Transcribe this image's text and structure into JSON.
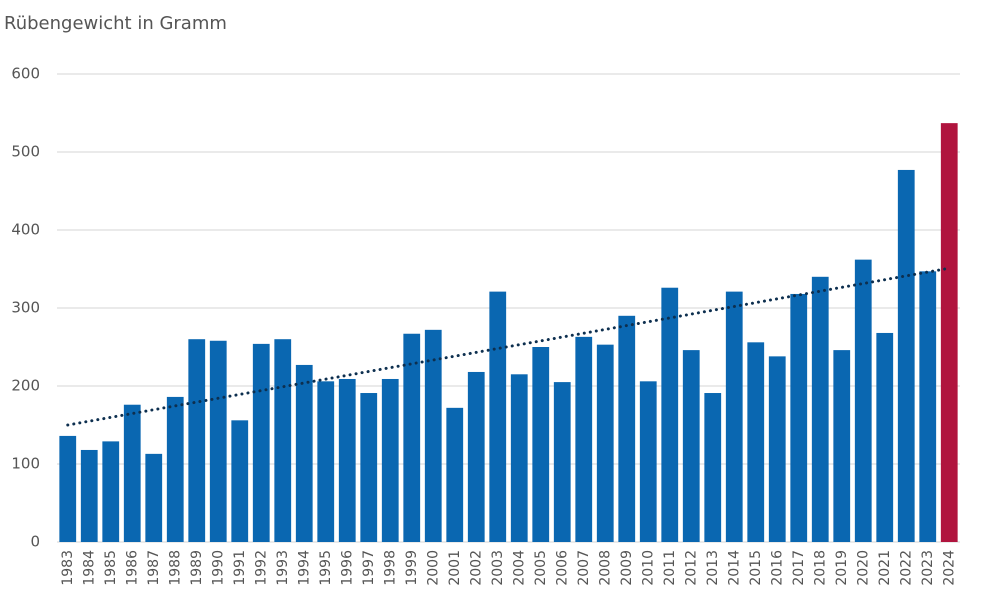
{
  "chart_data": {
    "type": "bar",
    "title": "Rübengewicht in Gramm",
    "categories": [
      "1983",
      "1984",
      "1985",
      "1986",
      "1987",
      "1988",
      "1989",
      "1990",
      "1991",
      "1992",
      "1993",
      "1994",
      "1995",
      "1996",
      "1997",
      "1998",
      "1999",
      "2000",
      "2001",
      "2002",
      "2003",
      "2004",
      "2005",
      "2006",
      "2007",
      "2008",
      "2009",
      "2010",
      "2011",
      "2012",
      "2013",
      "2014",
      "2015",
      "2016",
      "2017",
      "2018",
      "2019",
      "2020",
      "2021",
      "2022",
      "2023",
      "2024"
    ],
    "values": [
      136,
      118,
      129,
      176,
      113,
      186,
      260,
      258,
      156,
      254,
      260,
      227,
      206,
      209,
      191,
      209,
      267,
      272,
      172,
      218,
      321,
      215,
      250,
      205,
      263,
      253,
      290,
      206,
      326,
      246,
      191,
      321,
      256,
      238,
      318,
      340,
      246,
      362,
      268,
      477,
      347,
      537
    ],
    "colors": [
      "#0a67b1",
      "#0a67b1",
      "#0a67b1",
      "#0a67b1",
      "#0a67b1",
      "#0a67b1",
      "#0a67b1",
      "#0a67b1",
      "#0a67b1",
      "#0a67b1",
      "#0a67b1",
      "#0a67b1",
      "#0a67b1",
      "#0a67b1",
      "#0a67b1",
      "#0a67b1",
      "#0a67b1",
      "#0a67b1",
      "#0a67b1",
      "#0a67b1",
      "#0a67b1",
      "#0a67b1",
      "#0a67b1",
      "#0a67b1",
      "#0a67b1",
      "#0a67b1",
      "#0a67b1",
      "#0a67b1",
      "#0a67b1",
      "#0a67b1",
      "#0a67b1",
      "#0a67b1",
      "#0a67b1",
      "#0a67b1",
      "#0a67b1",
      "#0a67b1",
      "#0a67b1",
      "#0a67b1",
      "#0a67b1",
      "#0a67b1",
      "#0a67b1",
      "#b0143e"
    ],
    "trendline": {
      "start": 150,
      "end": 351,
      "color": "#0d2f4f"
    },
    "ylim": [
      0,
      600
    ],
    "yticks": [
      0,
      100,
      200,
      300,
      400,
      500,
      600
    ],
    "grid": true
  }
}
